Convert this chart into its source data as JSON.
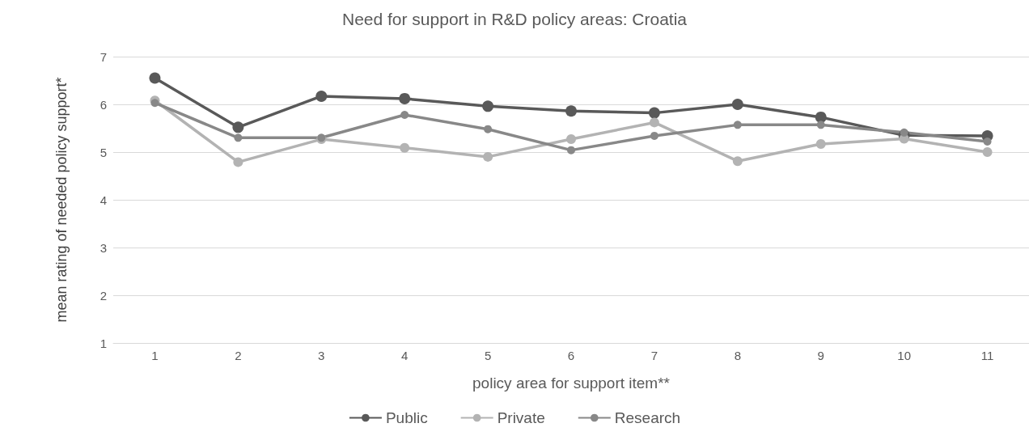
{
  "chart_data": {
    "type": "line",
    "title": "Need for support in R&D policy areas: Croatia",
    "xlabel": "policy area for support item**",
    "ylabel": "mean rating of needed policy support*",
    "categories": [
      "1",
      "2",
      "3",
      "4",
      "5",
      "6",
      "7",
      "8",
      "9",
      "10",
      "11"
    ],
    "series": [
      {
        "name": "Public",
        "color": "#595959",
        "values": [
          6.55,
          5.52,
          6.17,
          6.12,
          5.96,
          5.86,
          5.82,
          6.0,
          5.73,
          5.35,
          5.34
        ]
      },
      {
        "name": "Private",
        "color": "#b3b3b3",
        "values": [
          6.08,
          4.79,
          5.27,
          5.09,
          4.9,
          5.27,
          5.62,
          4.81,
          5.17,
          5.28,
          5.0
        ]
      },
      {
        "name": "Research",
        "color": "#888888",
        "values": [
          6.03,
          5.3,
          5.3,
          5.78,
          5.48,
          5.04,
          5.34,
          5.57,
          5.57,
          5.41,
          5.22
        ]
      }
    ],
    "ylim": [
      1,
      7
    ],
    "yticks": [
      1,
      2,
      3,
      4,
      5,
      6,
      7
    ],
    "grid": "y",
    "legend": "bottom",
    "marker": "circle",
    "line_style": "solid"
  }
}
